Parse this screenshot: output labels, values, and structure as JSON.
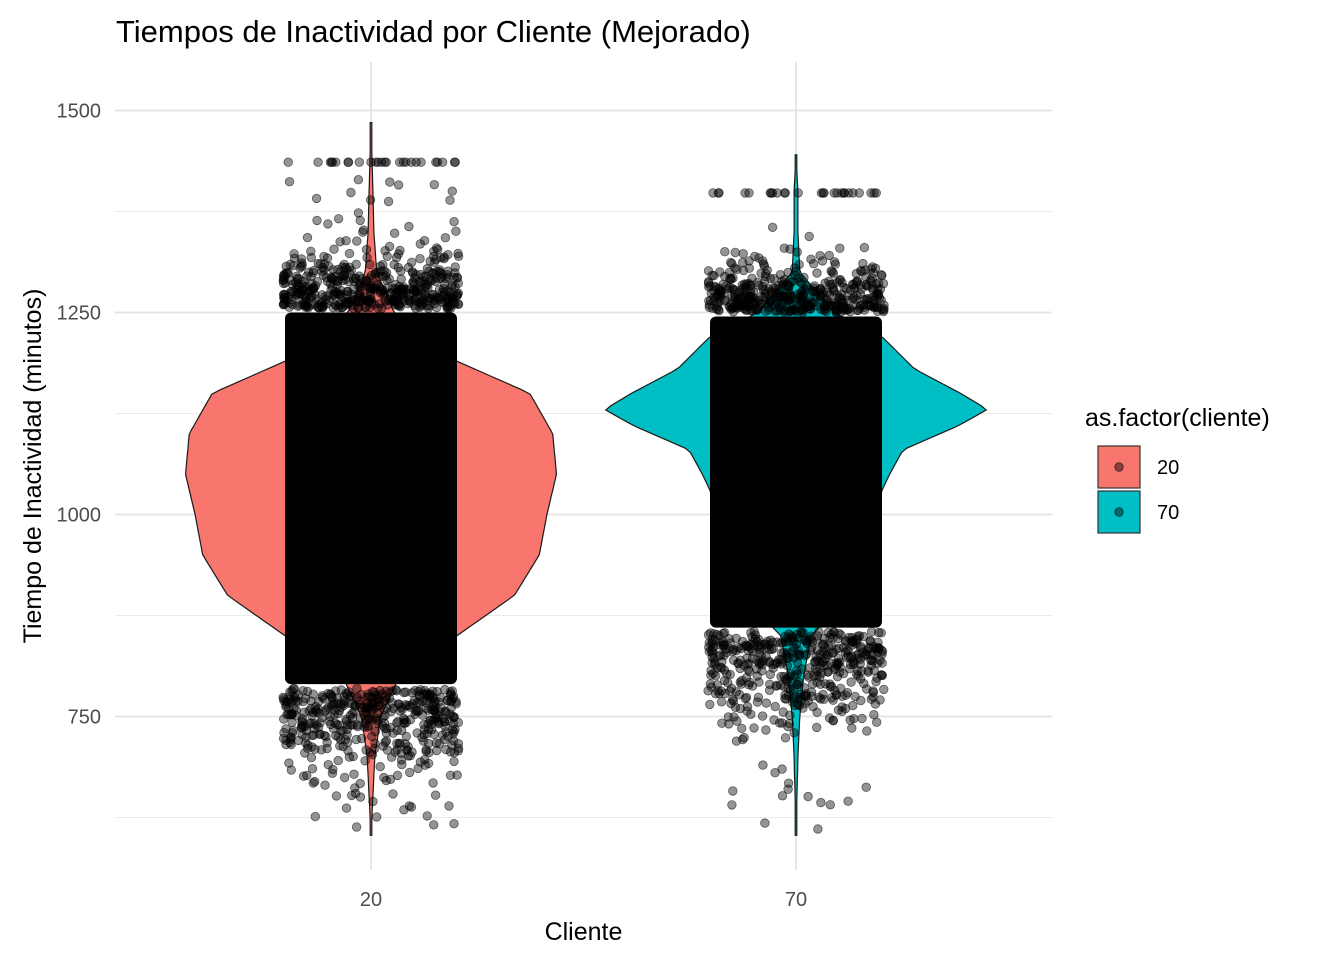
{
  "chart_data": {
    "type": "violin",
    "title": "Tiempos de Inactividad por Cliente (Mejorado)",
    "xlabel": "Cliente",
    "ylabel": "Tiempo de Inactividad (minutos)",
    "categories": [
      "20",
      "70"
    ],
    "ylim": [
      560,
      1560
    ],
    "yticks": [
      750,
      1000,
      1250,
      1500
    ],
    "grid": true,
    "legend": {
      "title": "as.factor(cliente)",
      "placement": "right",
      "entries": [
        "20",
        "70"
      ]
    },
    "colors": {
      "20": "#F8766D",
      "70": "#00BFC4"
    },
    "series": [
      {
        "category": "20",
        "min": 603,
        "max": 1485,
        "core_range": [
          790,
          1250
        ],
        "density_profile": [
          [
            603,
            0.0
          ],
          [
            700,
            0.02
          ],
          [
            750,
            0.05
          ],
          [
            800,
            0.15
          ],
          [
            850,
            0.45
          ],
          [
            900,
            0.75
          ],
          [
            950,
            0.88
          ],
          [
            1000,
            0.92
          ],
          [
            1050,
            0.97
          ],
          [
            1100,
            0.95
          ],
          [
            1150,
            0.83
          ],
          [
            1200,
            0.35
          ],
          [
            1250,
            0.12
          ],
          [
            1300,
            0.03
          ],
          [
            1350,
            0.015
          ],
          [
            1400,
            0.01
          ],
          [
            1485,
            0.0
          ]
        ]
      },
      {
        "category": "70",
        "min": 603,
        "max": 1445,
        "core_range": [
          860,
          1245
        ],
        "density_profile": [
          [
            603,
            0.0
          ],
          [
            700,
            0.01
          ],
          [
            750,
            0.02
          ],
          [
            800,
            0.04
          ],
          [
            850,
            0.08
          ],
          [
            900,
            0.28
          ],
          [
            950,
            0.38
          ],
          [
            1000,
            0.42
          ],
          [
            1030,
            0.45
          ],
          [
            1050,
            0.49
          ],
          [
            1080,
            0.56
          ],
          [
            1110,
            0.85
          ],
          [
            1130,
            1.0
          ],
          [
            1150,
            0.86
          ],
          [
            1180,
            0.62
          ],
          [
            1220,
            0.45
          ],
          [
            1250,
            0.2
          ],
          [
            1300,
            0.02
          ],
          [
            1350,
            0.01
          ],
          [
            1400,
            0.01
          ],
          [
            1445,
            0.0
          ]
        ]
      }
    ]
  }
}
